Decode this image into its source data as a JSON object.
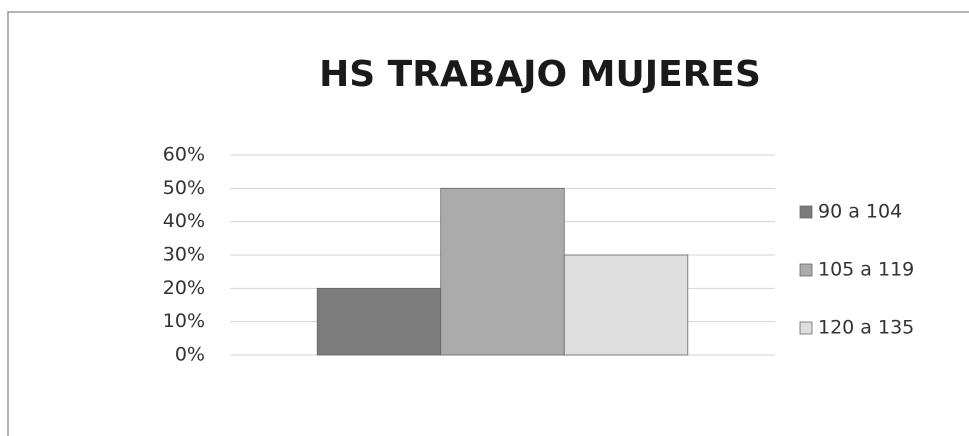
{
  "chart_data": {
    "type": "bar",
    "title": "HS TRABAJO MUJERES",
    "categories": [
      null
    ],
    "series": [
      {
        "name": "90 a 104",
        "color": "#7c7c7c",
        "values": [
          20
        ]
      },
      {
        "name": "105 a 119",
        "color": "#ababab",
        "values": [
          50
        ]
      },
      {
        "name": "120 a 135",
        "color": "#dedede",
        "values": [
          30
        ]
      }
    ],
    "ylim": [
      0,
      60
    ],
    "yticks": [
      {
        "value": 0,
        "label": "0%"
      },
      {
        "value": 10,
        "label": "10%"
      },
      {
        "value": 20,
        "label": "20%"
      },
      {
        "value": 30,
        "label": "30%"
      },
      {
        "value": 40,
        "label": "40%"
      },
      {
        "value": 50,
        "label": "50%"
      },
      {
        "value": 60,
        "label": "60%"
      }
    ],
    "grid": true,
    "legend": "right"
  }
}
